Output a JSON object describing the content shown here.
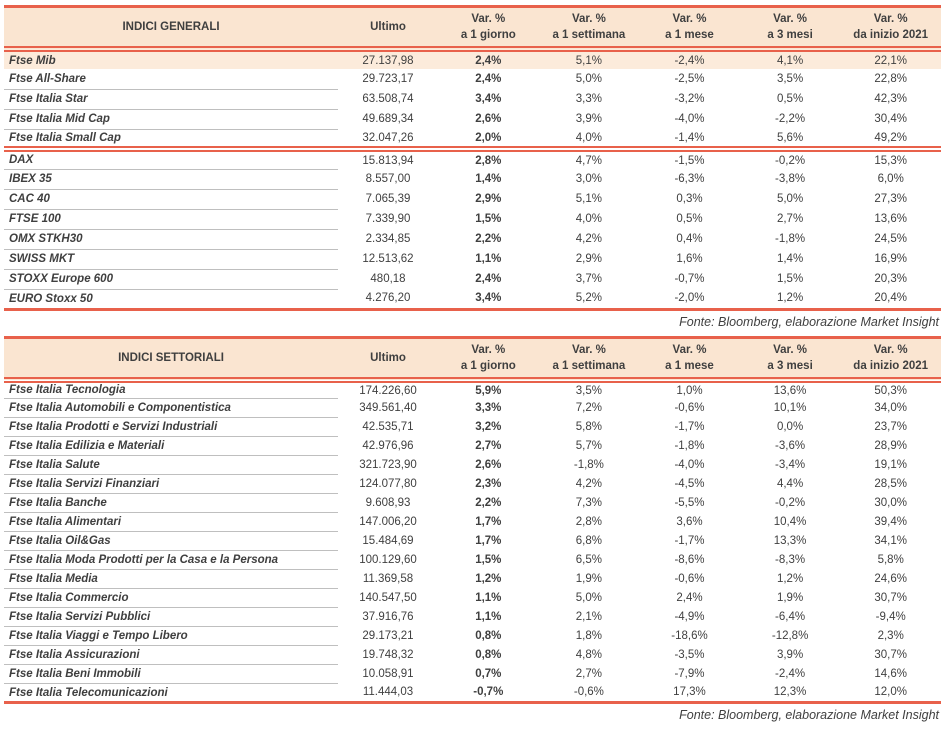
{
  "colors": {
    "accent": "#E8614B",
    "header_bg": "#FAE5D1",
    "highlight_row_bg": "#FCEBDB",
    "text": "#3F3F3F",
    "row_separator": "#BFBFBF"
  },
  "columns": {
    "ultimo": "Ultimo",
    "var_headers": [
      {
        "line1": "Var. %",
        "line2": "a 1 giorno"
      },
      {
        "line1": "Var. %",
        "line2": "a 1 settimana"
      },
      {
        "line1": "Var. %",
        "line2": "a 1 mese"
      },
      {
        "line1": "Var. %",
        "line2": "a 3 mesi"
      },
      {
        "line1": "Var. %",
        "line2": "da inizio 2021"
      }
    ]
  },
  "source_note": "Fonte: Bloomberg, elaborazione Market Insight",
  "tables": [
    {
      "title": "INDICI GENERALI",
      "groups": [
        {
          "rows": [
            {
              "name": "Ftse Mib",
              "ultimo": "27.137,98",
              "d1": "2,4%",
              "w1": "5,1%",
              "m1": "-2,4%",
              "m3": "4,1%",
              "ytd": "22,1%",
              "highlight": true
            },
            {
              "name": "Ftse All-Share",
              "ultimo": "29.723,17",
              "d1": "2,4%",
              "w1": "5,0%",
              "m1": "-2,5%",
              "m3": "3,5%",
              "ytd": "22,8%"
            },
            {
              "name": "Ftse Italia Star",
              "ultimo": "63.508,74",
              "d1": "3,4%",
              "w1": "3,3%",
              "m1": "-3,2%",
              "m3": "0,5%",
              "ytd": "42,3%"
            },
            {
              "name": "Ftse Italia Mid Cap",
              "ultimo": "49.689,34",
              "d1": "2,6%",
              "w1": "3,9%",
              "m1": "-4,0%",
              "m3": "-2,2%",
              "ytd": "30,4%"
            },
            {
              "name": "Ftse Italia Small Cap",
              "ultimo": "32.047,26",
              "d1": "2,0%",
              "w1": "4,0%",
              "m1": "-1,4%",
              "m3": "5,6%",
              "ytd": "49,2%"
            }
          ]
        },
        {
          "rows": [
            {
              "name": "DAX",
              "ultimo": "15.813,94",
              "d1": "2,8%",
              "w1": "4,7%",
              "m1": "-1,5%",
              "m3": "-0,2%",
              "ytd": "15,3%"
            },
            {
              "name": "IBEX 35",
              "ultimo": "8.557,00",
              "d1": "1,4%",
              "w1": "3,0%",
              "m1": "-6,3%",
              "m3": "-3,8%",
              "ytd": "6,0%"
            },
            {
              "name": "CAC 40",
              "ultimo": "7.065,39",
              "d1": "2,9%",
              "w1": "5,1%",
              "m1": "0,3%",
              "m3": "5,0%",
              "ytd": "27,3%"
            },
            {
              "name": "FTSE 100",
              "ultimo": "7.339,90",
              "d1": "1,5%",
              "w1": "4,0%",
              "m1": "0,5%",
              "m3": "2,7%",
              "ytd": "13,6%"
            },
            {
              "name": "OMX STKH30",
              "ultimo": "2.334,85",
              "d1": "2,2%",
              "w1": "4,2%",
              "m1": "0,4%",
              "m3": "-1,8%",
              "ytd": "24,5%"
            },
            {
              "name": "SWISS MKT",
              "ultimo": "12.513,62",
              "d1": "1,1%",
              "w1": "2,9%",
              "m1": "1,6%",
              "m3": "1,4%",
              "ytd": "16,9%"
            },
            {
              "name": "STOXX Europe 600",
              "ultimo": "480,18",
              "d1": "2,4%",
              "w1": "3,7%",
              "m1": "-0,7%",
              "m3": "1,5%",
              "ytd": "20,3%"
            },
            {
              "name": "EURO Stoxx 50",
              "ultimo": "4.276,20",
              "d1": "3,4%",
              "w1": "5,2%",
              "m1": "-2,0%",
              "m3": "1,2%",
              "ytd": "20,4%"
            }
          ]
        }
      ]
    },
    {
      "title": "INDICI SETTORIALI",
      "groups": [
        {
          "rows": [
            {
              "name": "Ftse Italia Tecnologia",
              "ultimo": "174.226,60",
              "d1": "5,9%",
              "w1": "3,5%",
              "m1": "1,0%",
              "m3": "13,6%",
              "ytd": "50,3%"
            },
            {
              "name": "Ftse Italia Automobili e Componentistica",
              "ultimo": "349.561,40",
              "d1": "3,3%",
              "w1": "7,2%",
              "m1": "-0,6%",
              "m3": "10,1%",
              "ytd": "34,0%"
            },
            {
              "name": "Ftse Italia Prodotti e Servizi Industriali",
              "ultimo": "42.535,71",
              "d1": "3,2%",
              "w1": "5,8%",
              "m1": "-1,7%",
              "m3": "0,0%",
              "ytd": "23,7%"
            },
            {
              "name": "Ftse Italia Edilizia e Materiali",
              "ultimo": "42.976,96",
              "d1": "2,7%",
              "w1": "5,7%",
              "m1": "-1,8%",
              "m3": "-3,6%",
              "ytd": "28,9%"
            },
            {
              "name": "Ftse Italia Salute",
              "ultimo": "321.723,90",
              "d1": "2,6%",
              "w1": "-1,8%",
              "m1": "-4,0%",
              "m3": "-3,4%",
              "ytd": "19,1%"
            },
            {
              "name": "Ftse Italia Servizi Finanziari",
              "ultimo": "124.077,80",
              "d1": "2,3%",
              "w1": "4,2%",
              "m1": "-4,5%",
              "m3": "4,4%",
              "ytd": "28,5%"
            },
            {
              "name": "Ftse Italia Banche",
              "ultimo": "9.608,93",
              "d1": "2,2%",
              "w1": "7,3%",
              "m1": "-5,5%",
              "m3": "-0,2%",
              "ytd": "30,0%"
            },
            {
              "name": "Ftse Italia Alimentari",
              "ultimo": "147.006,20",
              "d1": "1,7%",
              "w1": "2,8%",
              "m1": "3,6%",
              "m3": "10,4%",
              "ytd": "39,4%"
            },
            {
              "name": "Ftse Italia Oil&Gas",
              "ultimo": "15.484,69",
              "d1": "1,7%",
              "w1": "6,8%",
              "m1": "-1,7%",
              "m3": "13,3%",
              "ytd": "34,1%"
            },
            {
              "name": "Ftse Italia Moda Prodotti per la Casa e la Persona",
              "ultimo": "100.129,60",
              "d1": "1,5%",
              "w1": "6,5%",
              "m1": "-8,6%",
              "m3": "-8,3%",
              "ytd": "5,8%"
            },
            {
              "name": "Ftse Italia Media",
              "ultimo": "11.369,58",
              "d1": "1,2%",
              "w1": "1,9%",
              "m1": "-0,6%",
              "m3": "1,2%",
              "ytd": "24,6%"
            },
            {
              "name": "Ftse Italia Commercio",
              "ultimo": "140.547,50",
              "d1": "1,1%",
              "w1": "5,0%",
              "m1": "2,4%",
              "m3": "1,9%",
              "ytd": "30,7%"
            },
            {
              "name": "Ftse Italia Servizi Pubblici",
              "ultimo": "37.916,76",
              "d1": "1,1%",
              "w1": "2,1%",
              "m1": "-4,9%",
              "m3": "-6,4%",
              "ytd": "-9,4%"
            },
            {
              "name": "Ftse Italia Viaggi e Tempo Libero",
              "ultimo": "29.173,21",
              "d1": "0,8%",
              "w1": "1,8%",
              "m1": "-18,6%",
              "m3": "-12,8%",
              "ytd": "2,3%"
            },
            {
              "name": "Ftse Italia Assicurazioni",
              "ultimo": "19.748,32",
              "d1": "0,8%",
              "w1": "4,8%",
              "m1": "-3,5%",
              "m3": "3,9%",
              "ytd": "30,7%"
            },
            {
              "name": "Ftse Italia Beni Immobili",
              "ultimo": "10.058,91",
              "d1": "0,7%",
              "w1": "2,7%",
              "m1": "-7,9%",
              "m3": "-2,4%",
              "ytd": "14,6%"
            },
            {
              "name": "Ftse Italia Telecomunicazioni",
              "ultimo": "11.444,03",
              "d1": "-0,7%",
              "w1": "-0,6%",
              "m1": "17,3%",
              "m3": "12,3%",
              "ytd": "12,0%"
            }
          ]
        }
      ]
    }
  ]
}
